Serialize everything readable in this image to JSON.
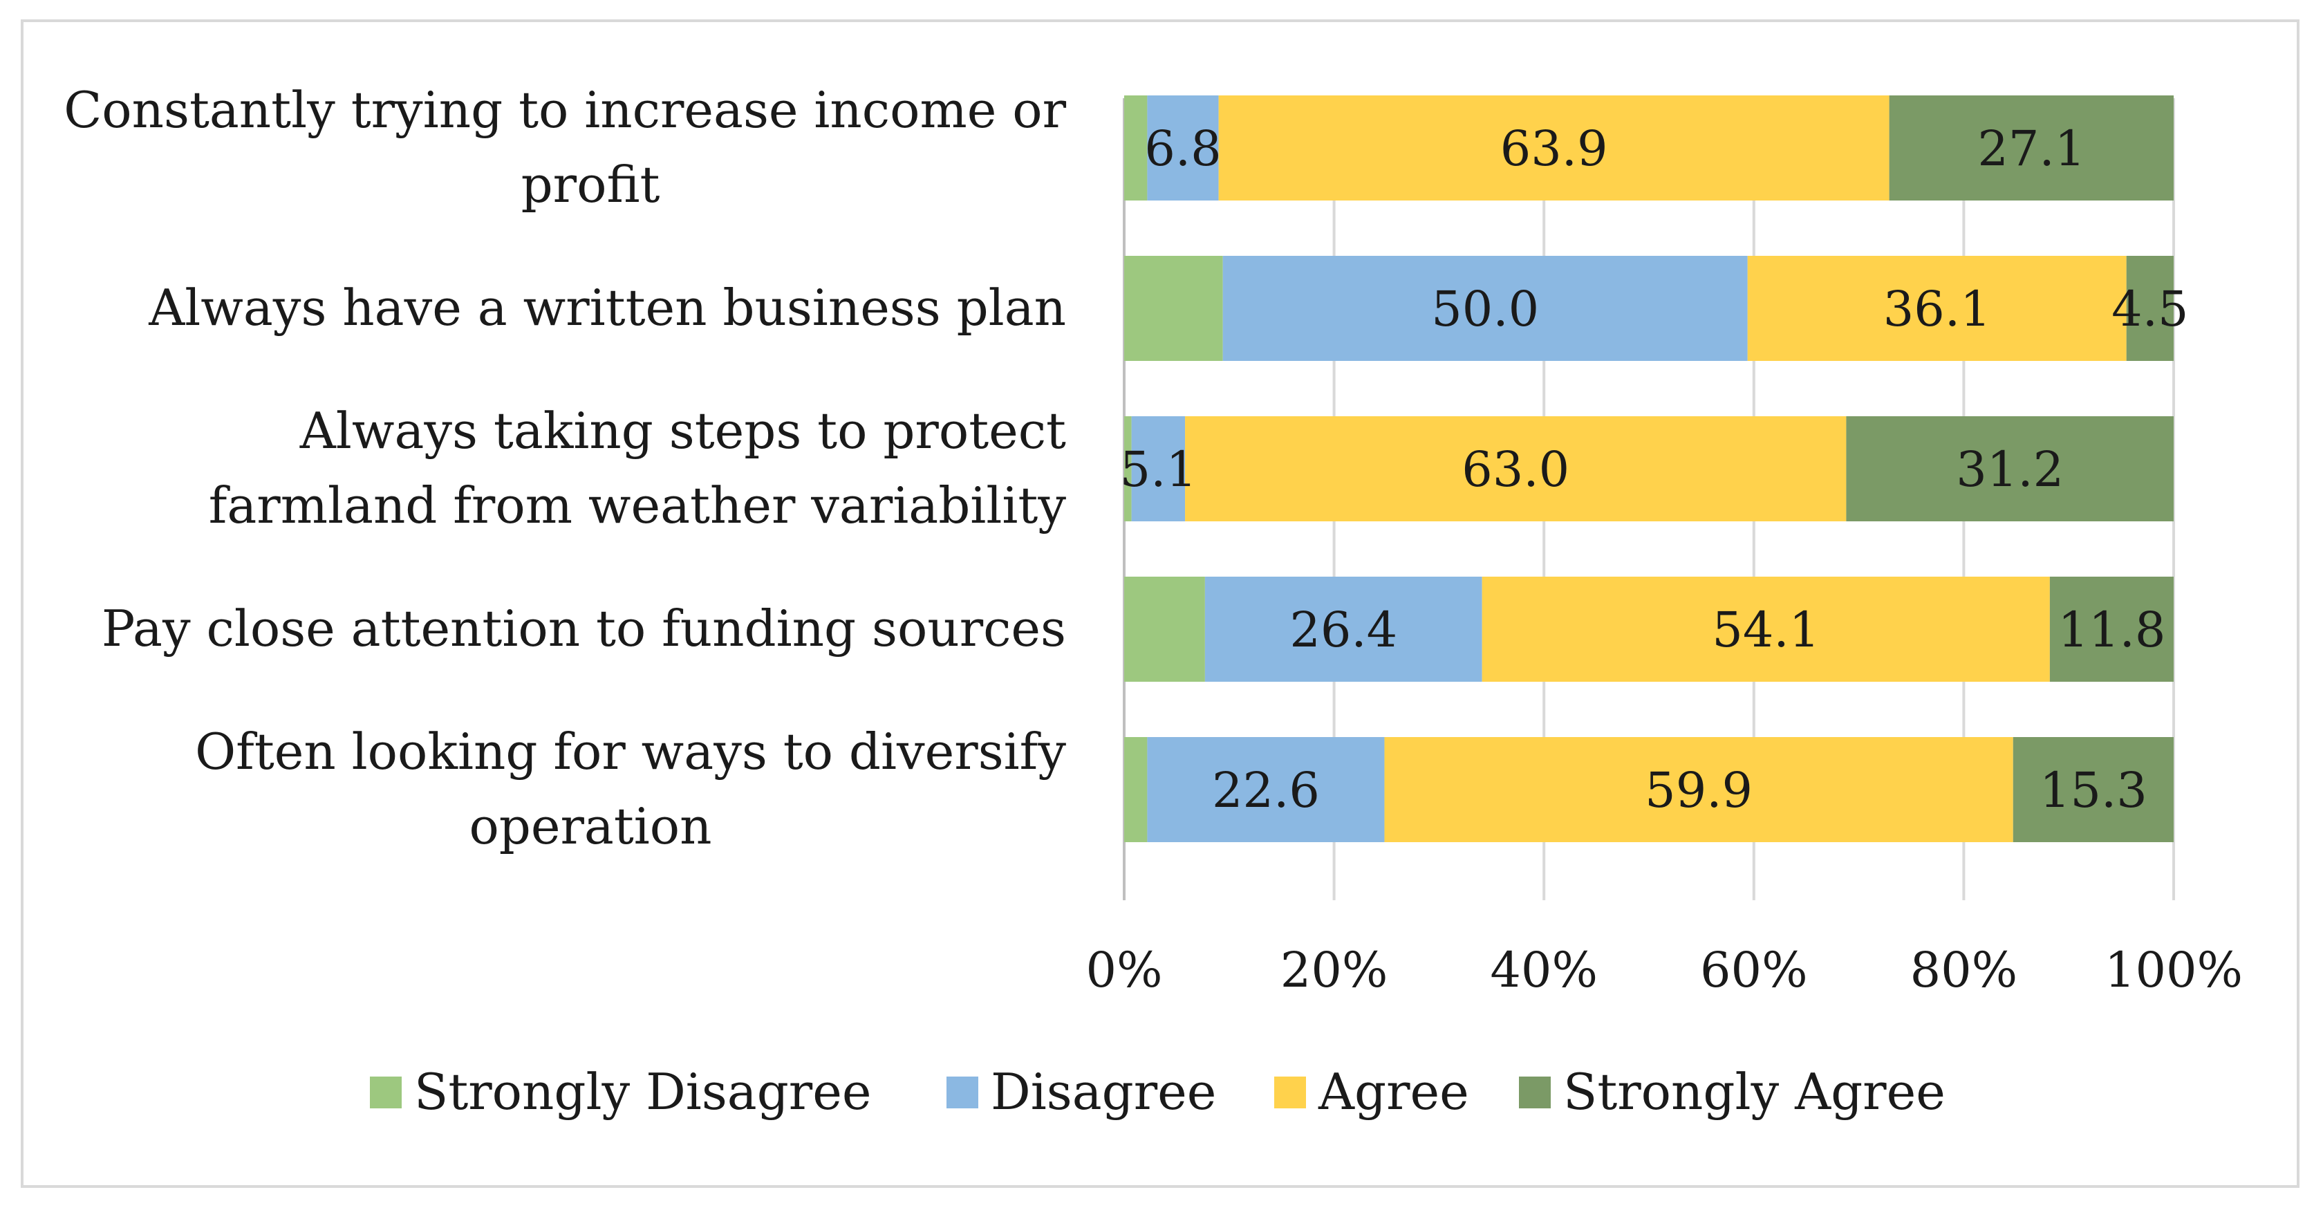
{
  "chart_data": {
    "type": "bar",
    "orientation": "horizontal",
    "stacked": "percent",
    "categories": [
      [
        "Constantly trying to increase income or",
        "profit"
      ],
      [
        "Always have a written business plan"
      ],
      [
        "Always taking steps to protect",
        "farmland from weather variability"
      ],
      [
        "Pay close attention to funding sources"
      ],
      [
        "Often looking for ways to diversify",
        "operation"
      ]
    ],
    "series": [
      {
        "name": "Strongly Disagree",
        "color": "#9dc87f",
        "values": [
          2.2,
          9.4,
          0.7,
          7.7,
          2.2
        ],
        "labels": [
          "",
          "",
          "",
          "",
          ""
        ]
      },
      {
        "name": "Disagree",
        "color": "#8bb8e2",
        "values": [
          6.8,
          50.0,
          5.1,
          26.4,
          22.6
        ],
        "labels": [
          "6.8",
          "50.0",
          "5.1",
          "26.4",
          "22.6"
        ]
      },
      {
        "name": "Agree",
        "color": "#ffd24c",
        "values": [
          63.9,
          36.1,
          63.0,
          54.1,
          59.9
        ],
        "labels": [
          "63.9",
          "36.1",
          "63.0",
          "54.1",
          "59.9"
        ]
      },
      {
        "name": "Strongly Agree",
        "color": "#7b9a66",
        "values": [
          27.1,
          4.5,
          31.2,
          11.8,
          15.3
        ],
        "labels": [
          "27.1",
          "4.5",
          "31.2",
          "11.8",
          "15.3"
        ]
      }
    ],
    "x_ticks": [
      "0%",
      "20%",
      "40%",
      "60%",
      "80%",
      "100%"
    ],
    "xlim": [
      0,
      100
    ],
    "grid": "vertical",
    "legend": "bottom"
  }
}
